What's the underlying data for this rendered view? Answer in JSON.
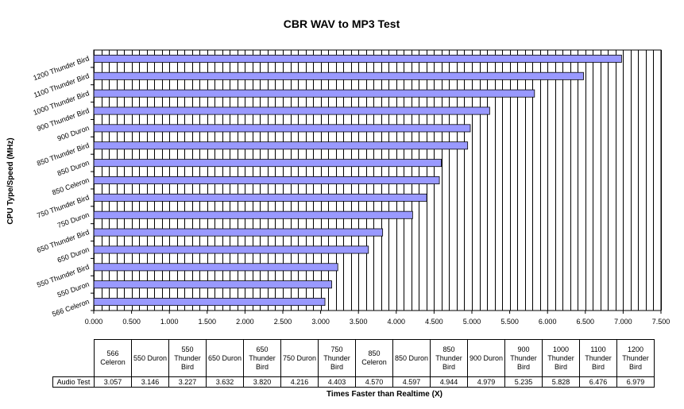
{
  "chart_data": {
    "type": "bar",
    "orientation": "horizontal",
    "title": "CBR WAV to MP3 Test",
    "xlabel": "Times Faster than Realtime (X)",
    "ylabel": "CPU Type/Speed (MHz)",
    "categories": [
      "566 Celeron",
      "550 Duron",
      "550 Thunder Bird",
      "650 Duron",
      "650 Thunder Bird",
      "750 Duron",
      "750 Thunder Bird",
      "850 Celeron",
      "850 Duron",
      "850 Thunder Bird",
      "900 Duron",
      "900 Thunder Bird",
      "1000 Thunder Bird",
      "1100 Thunder Bird",
      "1200 Thunder Bird"
    ],
    "table_headers": [
      "566 Celeron",
      "550 Duron",
      "550 Thunder Bird",
      "650 Duron",
      "650 Thunder Bird",
      "750 Duron",
      "750 Thunder Bird",
      "850 Celeron",
      "850 Duron",
      "850 Thunder Bird",
      "900 Duron",
      "900 Thunder Bird",
      "1000 Thunder Bird",
      "1100 Thunder Bird",
      "1200 Thunder Bird"
    ],
    "series": [
      {
        "name": "Audio Test",
        "values": [
          3.057,
          3.146,
          3.227,
          3.632,
          3.82,
          4.216,
          4.403,
          4.57,
          4.597,
          4.944,
          4.979,
          5.235,
          5.828,
          6.476,
          6.979
        ],
        "value_labels": [
          "3.057",
          "3.146",
          "3.227",
          "3.632",
          "3.820",
          "4.216",
          "4.403",
          "4.570",
          "4.597",
          "4.944",
          "4.979",
          "5.235",
          "5.828",
          "6.476",
          "6.979"
        ]
      }
    ],
    "xlim": [
      0,
      7.5
    ],
    "x_ticks": [
      0,
      0.5,
      1,
      1.5,
      2,
      2.5,
      3,
      3.5,
      4,
      4.5,
      5,
      5.5,
      6,
      6.5,
      7,
      7.5
    ],
    "x_tick_labels": [
      "0.000",
      "0.500",
      "1.000",
      "1.500",
      "2.000",
      "2.500",
      "3.000",
      "3.500",
      "4.000",
      "4.500",
      "5.000",
      "5.500",
      "6.000",
      "6.500",
      "7.000",
      "7.500"
    ],
    "x_minor_step": 0.1,
    "grid": "vertical",
    "legend": "none",
    "bar_color": "#9999ff",
    "grid_color": "#000000"
  }
}
